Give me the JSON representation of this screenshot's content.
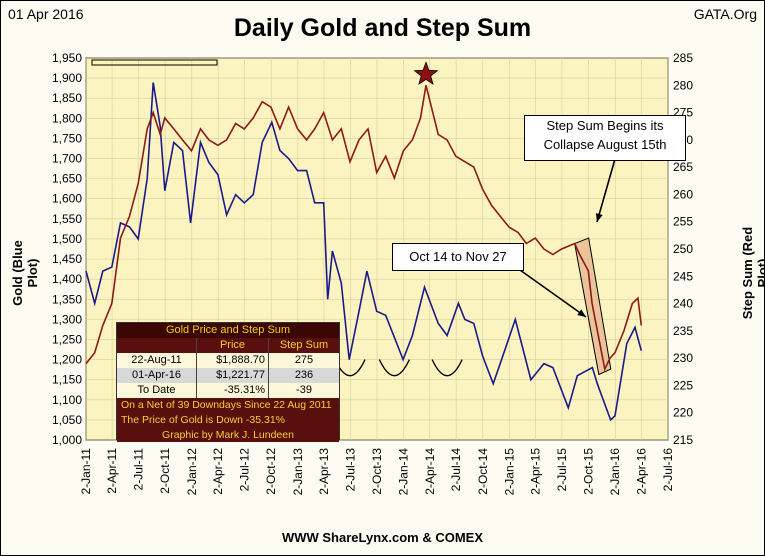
{
  "header": {
    "date": "01 Apr 2016",
    "title": "Daily Gold and Step Sum",
    "source": "GATA.Org"
  },
  "footer": "WWW ShareLynx.com & COMEX",
  "axes": {
    "left_label": "Gold  (Blue Plot)",
    "right_label": "Step Sum  (Red Plot)",
    "left_ticks": [
      "1,000",
      "1,050",
      "1,100",
      "1,150",
      "1,200",
      "1,250",
      "1,300",
      "1,350",
      "1,400",
      "1,450",
      "1,500",
      "1,550",
      "1,600",
      "1,650",
      "1,700",
      "1,750",
      "1,800",
      "1,850",
      "1,900",
      "1,950"
    ],
    "right_ticks": [
      "215",
      "220",
      "225",
      "230",
      "235",
      "240",
      "245",
      "250",
      "255",
      "260",
      "265",
      "270",
      "275",
      "280",
      "285"
    ],
    "x_ticks": [
      "2-Jan-11",
      "2-Apr-11",
      "2-Jul-11",
      "2-Oct-11",
      "2-Jan-12",
      "2-Apr-12",
      "2-Jul-12",
      "2-Oct-12",
      "2-Jan-13",
      "2-Apr-13",
      "2-Jul-13",
      "2-Oct-13",
      "2-Jan-14",
      "2-Apr-14",
      "2-Jul-14",
      "2-Oct-14",
      "2-Jan-15",
      "2-Apr-15",
      "2-Jul-15",
      "2-Oct-15",
      "2-Jan-16",
      "2-Apr-16",
      "2-Jul-16"
    ]
  },
  "callouts": {
    "collapse_line1": "Step Sum Begins its",
    "collapse_line2": "Collapse August 15th",
    "period": "Oct 14 to Nov 27"
  },
  "stats_table": {
    "title": "Gold Price and Step Sum",
    "col_price": "Price",
    "col_step": "Step Sum",
    "rows": [
      {
        "label": "22-Aug-11",
        "price": "$1,888.70",
        "step": "275"
      },
      {
        "label": "01-Apr-16",
        "price": "$1,221.77",
        "step": "236"
      },
      {
        "label": "To Date",
        "price": "-35.31%",
        "step": "-39"
      }
    ],
    "note1": "On a Net of 39 Downdays Since 22 Aug 2011",
    "note2": "The Price of Gold is Down -35.31%",
    "credit": "Graphic by Mark J. Lundeen"
  },
  "colors": {
    "gold": "#1a1a8c",
    "step_sum": "#8b1a1a",
    "plot_bg": "#fbf3c0",
    "star": "#8b1010"
  },
  "chart_data": {
    "type": "line",
    "y_left_range": [
      1000,
      1950
    ],
    "y_right_range": [
      215,
      285
    ],
    "x_range": [
      "2011-01-02",
      "2016-07-02"
    ],
    "series": [
      {
        "name": "Gold  (Blue Plot)",
        "axis": "left",
        "points": [
          [
            "2011-01-02",
            1420
          ],
          [
            "2011-02-01",
            1340
          ],
          [
            "2011-03-01",
            1420
          ],
          [
            "2011-04-01",
            1430
          ],
          [
            "2011-05-01",
            1540
          ],
          [
            "2011-06-01",
            1530
          ],
          [
            "2011-07-01",
            1500
          ],
          [
            "2011-08-01",
            1650
          ],
          [
            "2011-08-22",
            1889
          ],
          [
            "2011-09-15",
            1780
          ],
          [
            "2011-10-01",
            1620
          ],
          [
            "2011-11-01",
            1740
          ],
          [
            "2011-12-01",
            1720
          ],
          [
            "2011-12-29",
            1540
          ],
          [
            "2012-02-01",
            1740
          ],
          [
            "2012-03-01",
            1690
          ],
          [
            "2012-04-01",
            1660
          ],
          [
            "2012-05-01",
            1560
          ],
          [
            "2012-06-01",
            1610
          ],
          [
            "2012-07-01",
            1590
          ],
          [
            "2012-08-01",
            1610
          ],
          [
            "2012-09-01",
            1740
          ],
          [
            "2012-10-04",
            1790
          ],
          [
            "2012-11-01",
            1720
          ],
          [
            "2012-12-01",
            1700
          ],
          [
            "2013-01-01",
            1670
          ],
          [
            "2013-02-01",
            1670
          ],
          [
            "2013-03-01",
            1590
          ],
          [
            "2013-04-01",
            1590
          ],
          [
            "2013-04-15",
            1350
          ],
          [
            "2013-05-01",
            1470
          ],
          [
            "2013-06-01",
            1390
          ],
          [
            "2013-06-28",
            1200
          ],
          [
            "2013-08-01",
            1320
          ],
          [
            "2013-08-28",
            1420
          ],
          [
            "2013-10-01",
            1320
          ],
          [
            "2013-11-01",
            1310
          ],
          [
            "2013-12-31",
            1200
          ],
          [
            "2014-02-01",
            1260
          ],
          [
            "2014-03-15",
            1380
          ],
          [
            "2014-05-01",
            1290
          ],
          [
            "2014-06-01",
            1260
          ],
          [
            "2014-07-10",
            1340
          ],
          [
            "2014-08-01",
            1300
          ],
          [
            "2014-09-01",
            1290
          ],
          [
            "2014-10-01",
            1210
          ],
          [
            "2014-11-07",
            1140
          ],
          [
            "2014-12-01",
            1190
          ],
          [
            "2015-01-22",
            1300
          ],
          [
            "2015-03-17",
            1150
          ],
          [
            "2015-05-01",
            1190
          ],
          [
            "2015-06-01",
            1180
          ],
          [
            "2015-07-24",
            1080
          ],
          [
            "2015-08-24",
            1160
          ],
          [
            "2015-10-15",
            1180
          ],
          [
            "2015-11-01",
            1140
          ],
          [
            "2015-12-17",
            1050
          ],
          [
            "2016-01-01",
            1060
          ],
          [
            "2016-02-11",
            1240
          ],
          [
            "2016-03-10",
            1280
          ],
          [
            "2016-04-01",
            1222
          ]
        ]
      },
      {
        "name": "Step Sum  (Red Plot)",
        "axis": "right",
        "points": [
          [
            "2011-01-02",
            229
          ],
          [
            "2011-02-01",
            231
          ],
          [
            "2011-03-01",
            236
          ],
          [
            "2011-04-01",
            240
          ],
          [
            "2011-05-01",
            252
          ],
          [
            "2011-06-01",
            256
          ],
          [
            "2011-07-01",
            262
          ],
          [
            "2011-08-01",
            272
          ],
          [
            "2011-08-22",
            275
          ],
          [
            "2011-09-15",
            271
          ],
          [
            "2011-10-01",
            274
          ],
          [
            "2011-11-01",
            272
          ],
          [
            "2011-12-01",
            270
          ],
          [
            "2012-01-01",
            268
          ],
          [
            "2012-02-01",
            272
          ],
          [
            "2012-03-01",
            270
          ],
          [
            "2012-04-01",
            269
          ],
          [
            "2012-05-01",
            270
          ],
          [
            "2012-06-01",
            273
          ],
          [
            "2012-07-01",
            272
          ],
          [
            "2012-08-01",
            274
          ],
          [
            "2012-09-01",
            277
          ],
          [
            "2012-10-01",
            276
          ],
          [
            "2012-11-01",
            272
          ],
          [
            "2012-12-01",
            276
          ],
          [
            "2013-01-01",
            272
          ],
          [
            "2013-02-01",
            270
          ],
          [
            "2013-03-01",
            272
          ],
          [
            "2013-04-01",
            275
          ],
          [
            "2013-05-01",
            270
          ],
          [
            "2013-06-01",
            272
          ],
          [
            "2013-07-01",
            266
          ],
          [
            "2013-08-01",
            270
          ],
          [
            "2013-09-01",
            272
          ],
          [
            "2013-10-01",
            264
          ],
          [
            "2013-11-01",
            267
          ],
          [
            "2013-12-01",
            263
          ],
          [
            "2014-01-01",
            268
          ],
          [
            "2014-02-01",
            270
          ],
          [
            "2014-03-01",
            274
          ],
          [
            "2014-03-20",
            280
          ],
          [
            "2014-05-01",
            271
          ],
          [
            "2014-06-01",
            270
          ],
          [
            "2014-07-01",
            267
          ],
          [
            "2014-08-01",
            266
          ],
          [
            "2014-09-01",
            265
          ],
          [
            "2014-10-01",
            261
          ],
          [
            "2014-11-01",
            258
          ],
          [
            "2014-12-01",
            256
          ],
          [
            "2015-01-01",
            254
          ],
          [
            "2015-02-01",
            253
          ],
          [
            "2015-03-01",
            251
          ],
          [
            "2015-04-01",
            252
          ],
          [
            "2015-05-01",
            250
          ],
          [
            "2015-06-01",
            249
          ],
          [
            "2015-07-01",
            250
          ],
          [
            "2015-08-15",
            251
          ],
          [
            "2015-09-01",
            249
          ],
          [
            "2015-10-01",
            246
          ],
          [
            "2015-10-14",
            240
          ],
          [
            "2015-11-27",
            228
          ],
          [
            "2015-12-15",
            230
          ],
          [
            "2016-01-01",
            231
          ],
          [
            "2016-02-01",
            235
          ],
          [
            "2016-03-01",
            240
          ],
          [
            "2016-03-20",
            241
          ],
          [
            "2016-04-01",
            236
          ]
        ]
      }
    ]
  }
}
